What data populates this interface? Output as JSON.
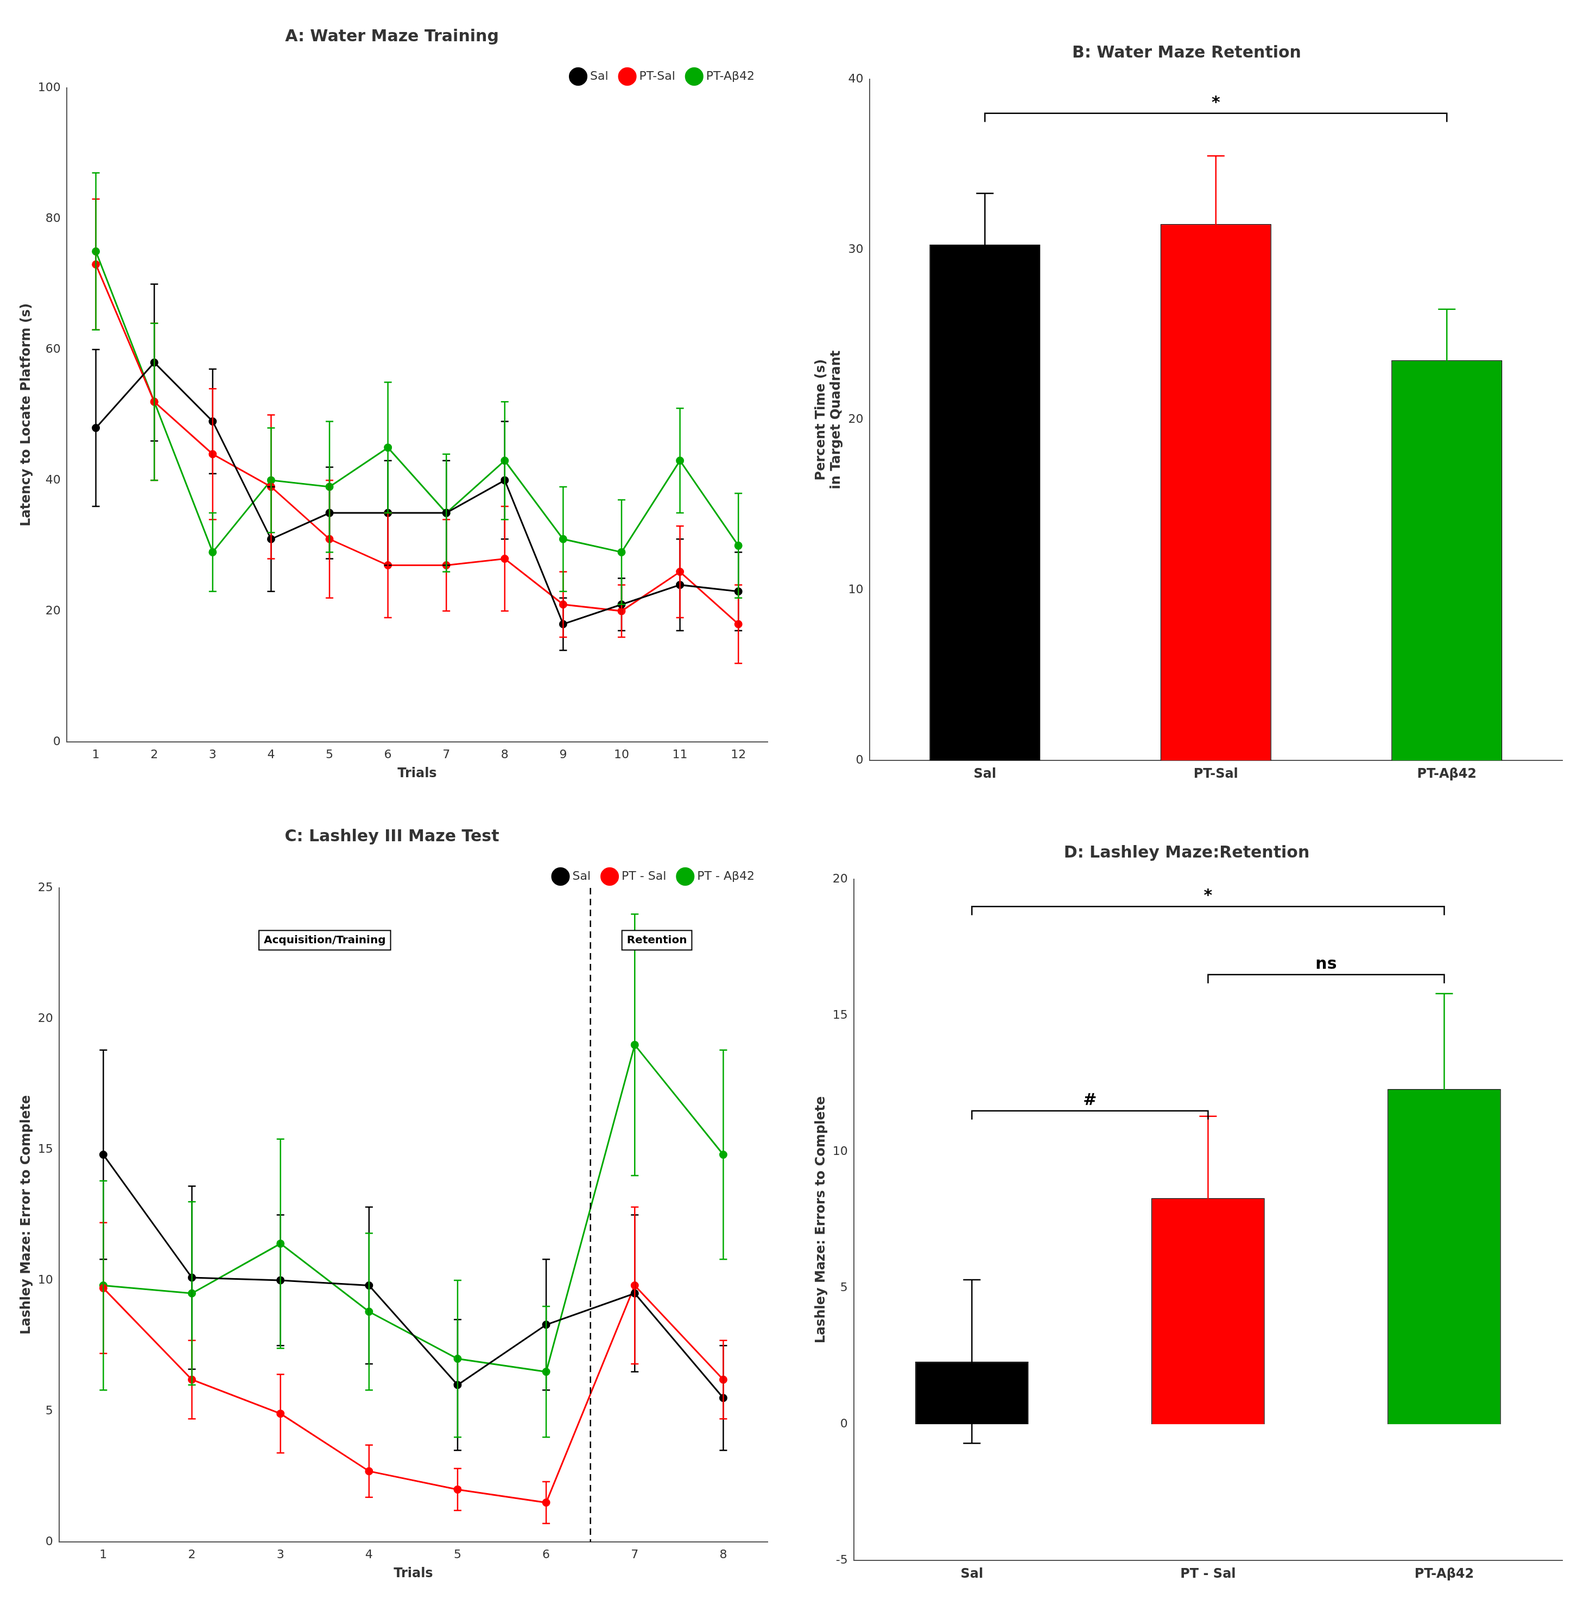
{
  "chart_data": [
    {
      "type": "line",
      "title": "A: Water Maze Training",
      "xlabel": "Trials",
      "ylabel": "Latency to Locate Platform (s)",
      "x": [
        1,
        2,
        3,
        4,
        5,
        6,
        7,
        8,
        9,
        10,
        11,
        12
      ],
      "xlim": [
        0.5,
        12.5
      ],
      "xticks": [
        1,
        2,
        3,
        4,
        5,
        6,
        7,
        8,
        9,
        10,
        11,
        12
      ],
      "ylim": [
        0,
        100
      ],
      "yticks": [
        0,
        20,
        40,
        60,
        80,
        100
      ],
      "grid": false,
      "legend": "upper right",
      "marker": "circle",
      "series": [
        {
          "name": "Sal",
          "color": "#000000",
          "values": [
            48,
            58,
            49,
            31,
            35,
            35,
            35,
            40,
            18,
            21,
            24,
            23
          ],
          "errors": [
            12,
            12,
            8,
            8,
            7,
            8,
            8,
            9,
            4,
            4,
            7,
            6
          ]
        },
        {
          "name": "PT-Sal",
          "color": "#FF0000",
          "values": [
            73,
            52,
            44,
            39,
            31,
            27,
            27,
            28,
            21,
            20,
            26,
            18
          ],
          "errors": [
            10,
            12,
            10,
            11,
            9,
            8,
            7,
            8,
            5,
            4,
            7,
            6
          ]
        },
        {
          "name": "PT-Aβ42",
          "color": "#00AA00",
          "values": [
            75,
            52,
            29,
            40,
            39,
            45,
            35,
            43,
            31,
            29,
            43,
            30
          ],
          "errors": [
            12,
            12,
            6,
            8,
            10,
            10,
            9,
            9,
            8,
            8,
            8,
            8
          ]
        }
      ]
    },
    {
      "type": "bar",
      "title": "B: Water Maze Retention",
      "ylabel": "Percent Time (s)\nin Target Quadrant",
      "categories": [
        "Sal",
        "PT-Sal",
        "PT-Aβ42"
      ],
      "values": [
        30.3,
        31.5,
        23.5
      ],
      "errors": [
        3.0,
        4.0,
        3.0
      ],
      "colors": [
        "#000000",
        "#FF0000",
        "#00AA00"
      ],
      "ylim": [
        0,
        40
      ],
      "yticks": [
        0,
        10,
        20,
        30,
        40
      ],
      "grid": false,
      "annotations": [
        {
          "type": "bracket",
          "from": "Sal",
          "to": "PT-Aβ42",
          "y": 38.0,
          "text": "*"
        }
      ]
    },
    {
      "type": "line",
      "title": "C: Lashley III Maze Test",
      "xlabel": "Trials",
      "ylabel": "Lashley Maze: Error to Complete",
      "x": [
        1,
        2,
        3,
        4,
        5,
        6,
        7,
        8
      ],
      "xlim": [
        0.5,
        8.5
      ],
      "xticks": [
        1,
        2,
        3,
        4,
        5,
        6,
        7,
        8
      ],
      "ylim": [
        0,
        25
      ],
      "yticks": [
        0,
        5,
        10,
        15,
        20,
        25
      ],
      "grid": false,
      "legend": "upper right",
      "marker": "circle",
      "series": [
        {
          "name": "Sal",
          "color": "#000000",
          "values": [
            14.8,
            10.1,
            10.0,
            9.8,
            6.0,
            8.3,
            9.5,
            5.5
          ],
          "errors": [
            4.0,
            3.5,
            2.5,
            3.0,
            2.5,
            2.5,
            3.0,
            2.0
          ]
        },
        {
          "name": "PT - Sal",
          "color": "#FF0000",
          "values": [
            9.7,
            6.2,
            4.9,
            2.7,
            2.0,
            1.5,
            9.8,
            6.2
          ],
          "errors": [
            2.5,
            1.5,
            1.5,
            1.0,
            0.8,
            0.8,
            3.0,
            1.5
          ]
        },
        {
          "name": "PT - Aβ42",
          "color": "#00AA00",
          "values": [
            9.8,
            9.5,
            11.4,
            8.8,
            7.0,
            6.5,
            19.0,
            14.8
          ],
          "errors": [
            4.0,
            3.5,
            4.0,
            3.0,
            3.0,
            2.5,
            5.0,
            4.0
          ]
        }
      ],
      "annotations": [
        {
          "type": "vline",
          "x": 6.5,
          "line_style": "dashed"
        },
        {
          "type": "box",
          "x": 3.5,
          "y": 23.0,
          "text": "Acquisition/Training"
        },
        {
          "type": "box",
          "x": 7.25,
          "y": 23.0,
          "text": "Retention"
        }
      ]
    },
    {
      "type": "bar",
      "title": "D: Lashley Maze:Retention",
      "ylabel": "Lashley Maze: Errors to Complete",
      "categories": [
        "Sal",
        "PT - Sal",
        "PT-Aβ42"
      ],
      "values": [
        2.3,
        8.3,
        12.3
      ],
      "errors": [
        3.0,
        3.0,
        3.5
      ],
      "colors": [
        "#000000",
        "#FF0000",
        "#00AA00"
      ],
      "ylim": [
        -5,
        20
      ],
      "yticks": [
        -5,
        0,
        5,
        10,
        15,
        20
      ],
      "grid": false,
      "annotations": [
        {
          "type": "bracket",
          "from": "Sal",
          "to": "PT-Aβ42",
          "y": 19.0,
          "text": "*"
        },
        {
          "type": "bracket",
          "from": "PT - Sal",
          "to": "PT-Aβ42",
          "y": 16.5,
          "text": "ns"
        },
        {
          "type": "bracket",
          "from": "Sal",
          "to": "PT - Sal",
          "y": 11.5,
          "text": "#"
        }
      ]
    }
  ]
}
